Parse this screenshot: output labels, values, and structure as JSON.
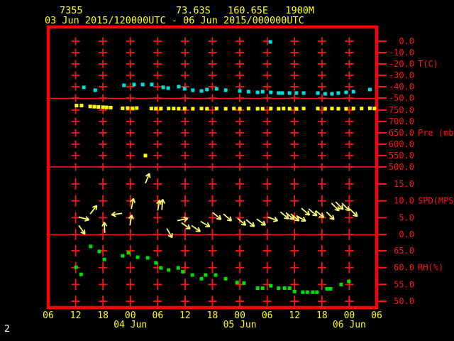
{
  "header": {
    "station_id": "7355",
    "location": "73.63S   160.65E   1900M",
    "time_range": "03 Jun 2015/120000UTC - 06 Jun 2015/000000UTC"
  },
  "page_number": "2",
  "colors": {
    "background": "#000000",
    "frame_red": "#ff0000",
    "axis_red": "#ff1515",
    "label_yellow": "#ffff00",
    "temp_cyan": "#00e0e0",
    "pressure_yellow": "#ffff00",
    "wind_yellow": "#f8f870",
    "humidity_green": "#00dd00"
  },
  "chart_data": {
    "type": "scatter",
    "x_axis": {
      "hour_ticks": [
        "06",
        "12",
        "18",
        "00",
        "06",
        "12",
        "18",
        "00",
        "06",
        "12",
        "18",
        "00",
        "06"
      ],
      "date_labels": [
        {
          "text": "04 Jun",
          "tick_index": 3
        },
        {
          "text": "05 Jun",
          "tick_index": 7
        },
        {
          "text": "06 Jun",
          "tick_index": 11
        }
      ],
      "hours_span": 72,
      "start_label": "03 Jun 06UTC"
    },
    "panels": [
      {
        "name": "temperature",
        "unit_label": "T(C)",
        "unit_label_row": 2,
        "color": "#00e0e0",
        "ticks": [
          "0.0",
          "-10.0",
          "-20.0",
          "-30.0",
          "-40.0",
          "-50.0"
        ],
        "ylim": [
          0,
          -50
        ],
        "points": [
          [
            7.8,
            -40.6
          ],
          [
            10.3,
            -43.1
          ],
          [
            16.6,
            -38.8
          ],
          [
            18.8,
            -38.1
          ],
          [
            20.7,
            -38.1
          ],
          [
            22.7,
            -38.1
          ],
          [
            25.2,
            -40.6
          ],
          [
            26.3,
            -41.3
          ],
          [
            28.6,
            -40.0
          ],
          [
            29.9,
            -41.9
          ],
          [
            31.7,
            -43.1
          ],
          [
            33.6,
            -43.8
          ],
          [
            34.8,
            -42.5
          ],
          [
            36.9,
            -41.9
          ],
          [
            38.9,
            -43.1
          ],
          [
            42.0,
            -43.8
          ],
          [
            43.9,
            -44.4
          ],
          [
            45.9,
            -45.0
          ],
          [
            47.0,
            -44.4
          ],
          [
            48.7,
            -0.6
          ],
          [
            48.8,
            -45.0
          ],
          [
            50.5,
            -45.6
          ],
          [
            51.3,
            -45.6
          ],
          [
            52.9,
            -45.6
          ],
          [
            54.4,
            -45.6
          ],
          [
            56.0,
            -45.6
          ],
          [
            59.1,
            -45.6
          ],
          [
            60.7,
            -46.3
          ],
          [
            62.2,
            -46.3
          ],
          [
            63.6,
            -45.6
          ],
          [
            65.3,
            -45.0
          ],
          [
            66.9,
            -44.4
          ],
          [
            70.5,
            -42.5
          ]
        ]
      },
      {
        "name": "pressure",
        "unit_label": "Pre (mb)",
        "unit_label_row": 2,
        "color": "#ffff00",
        "ticks": [
          "750.0",
          "700.0",
          "650.0",
          "600.0",
          "550.0",
          "500.0"
        ],
        "ylim": [
          750,
          500
        ],
        "points": [
          [
            6.2,
            770
          ],
          [
            7.3,
            770
          ],
          [
            9.2,
            766
          ],
          [
            10.1,
            765
          ],
          [
            11.0,
            764
          ],
          [
            12.0,
            763
          ],
          [
            12.8,
            762
          ],
          [
            13.7,
            761
          ],
          [
            16.3,
            758
          ],
          [
            17.4,
            759
          ],
          [
            18.5,
            758
          ],
          [
            19.4,
            759
          ],
          [
            21.3,
            550
          ],
          [
            22.6,
            757
          ],
          [
            23.6,
            757
          ],
          [
            24.7,
            757
          ],
          [
            26.4,
            757
          ],
          [
            27.5,
            757
          ],
          [
            28.6,
            756
          ],
          [
            29.9,
            757
          ],
          [
            31.7,
            756
          ],
          [
            33.6,
            757
          ],
          [
            34.8,
            756
          ],
          [
            36.9,
            757
          ],
          [
            38.9,
            756
          ],
          [
            40.7,
            757
          ],
          [
            42.0,
            756
          ],
          [
            43.9,
            757
          ],
          [
            45.9,
            756
          ],
          [
            47.0,
            756
          ],
          [
            48.8,
            757
          ],
          [
            50.5,
            756
          ],
          [
            51.6,
            757
          ],
          [
            52.9,
            756
          ],
          [
            54.4,
            756
          ],
          [
            56.0,
            757
          ],
          [
            59.1,
            757
          ],
          [
            60.7,
            756
          ],
          [
            62.2,
            757
          ],
          [
            63.6,
            756
          ],
          [
            65.3,
            756
          ],
          [
            66.9,
            757
          ],
          [
            68.7,
            757
          ],
          [
            70.5,
            758
          ],
          [
            71.5,
            757
          ]
        ]
      },
      {
        "name": "wind_speed",
        "unit_label": "SPD(MPS)",
        "unit_label_row": 1,
        "color": "#f8f870",
        "ticks": [
          "15.0",
          "10.0",
          "5.0",
          "0.0"
        ],
        "ylim": [
          15,
          0
        ],
        "arrows": [
          [
            6.7,
            5.2,
            -15
          ],
          [
            6.7,
            2.7,
            -55
          ],
          [
            9.2,
            6.1,
            52
          ],
          [
            12.4,
            0.5,
            93
          ],
          [
            16.2,
            6.3,
            188
          ],
          [
            17.9,
            2.7,
            80
          ],
          [
            18.2,
            7.6,
            78
          ],
          [
            21.3,
            15.2,
            68
          ],
          [
            24.0,
            7.1,
            80
          ],
          [
            24.9,
            7.3,
            85
          ],
          [
            26.0,
            1.8,
            -60
          ],
          [
            28.3,
            4.1,
            12
          ],
          [
            29.2,
            3.5,
            -35
          ],
          [
            31.4,
            2.7,
            -35
          ],
          [
            33.4,
            3.9,
            -30
          ],
          [
            36.1,
            6.5,
            -40
          ],
          [
            38.4,
            6.1,
            -40
          ],
          [
            41.5,
            4.8,
            -40
          ],
          [
            43.4,
            4.4,
            -40
          ],
          [
            45.7,
            4.6,
            -35
          ],
          [
            48.1,
            5.2,
            -20
          ],
          [
            50.9,
            6.7,
            -40
          ],
          [
            52.1,
            6.5,
            -40
          ],
          [
            53.2,
            6.1,
            -40
          ],
          [
            54.4,
            5.6,
            -30
          ],
          [
            55.5,
            7.8,
            -40
          ],
          [
            57.1,
            7.6,
            -40
          ],
          [
            58.6,
            7.1,
            -40
          ],
          [
            61.0,
            6.7,
            -45
          ],
          [
            62.1,
            9.3,
            -45
          ],
          [
            63.0,
            9.7,
            -45
          ],
          [
            64.4,
            9.3,
            -45
          ],
          [
            66.1,
            7.6,
            -45
          ]
        ]
      },
      {
        "name": "humidity",
        "unit_label": "RH(%)",
        "unit_label_row": 1,
        "color": "#00dd00",
        "ticks": [
          "65.0",
          "60.0",
          "55.0",
          "50.0"
        ],
        "ylim": [
          65,
          50
        ],
        "points": [
          [
            6.1,
            60.1
          ],
          [
            7.2,
            58.0
          ],
          [
            9.3,
            66.3
          ],
          [
            11.2,
            64.8
          ],
          [
            12.3,
            62.4
          ],
          [
            16.3,
            63.5
          ],
          [
            17.6,
            64.4
          ],
          [
            19.6,
            63.1
          ],
          [
            21.8,
            62.9
          ],
          [
            23.6,
            61.4
          ],
          [
            24.7,
            59.9
          ],
          [
            26.4,
            59.3
          ],
          [
            28.5,
            59.9
          ],
          [
            29.5,
            58.8
          ],
          [
            31.6,
            57.8
          ],
          [
            33.6,
            56.7
          ],
          [
            34.5,
            57.8
          ],
          [
            36.7,
            57.8
          ],
          [
            38.9,
            56.7
          ],
          [
            41.4,
            55.6
          ],
          [
            42.9,
            55.4
          ],
          [
            45.9,
            53.9
          ],
          [
            47.0,
            53.9
          ],
          [
            48.8,
            54.6
          ],
          [
            50.5,
            53.9
          ],
          [
            51.8,
            53.9
          ],
          [
            52.9,
            53.9
          ],
          [
            54.0,
            52.9
          ],
          [
            55.8,
            52.7
          ],
          [
            56.8,
            52.7
          ],
          [
            58.0,
            52.7
          ],
          [
            58.9,
            52.7
          ],
          [
            61.1,
            53.7
          ],
          [
            61.9,
            53.7
          ],
          [
            64.2,
            55.0
          ],
          [
            65.9,
            55.9
          ]
        ]
      }
    ]
  }
}
